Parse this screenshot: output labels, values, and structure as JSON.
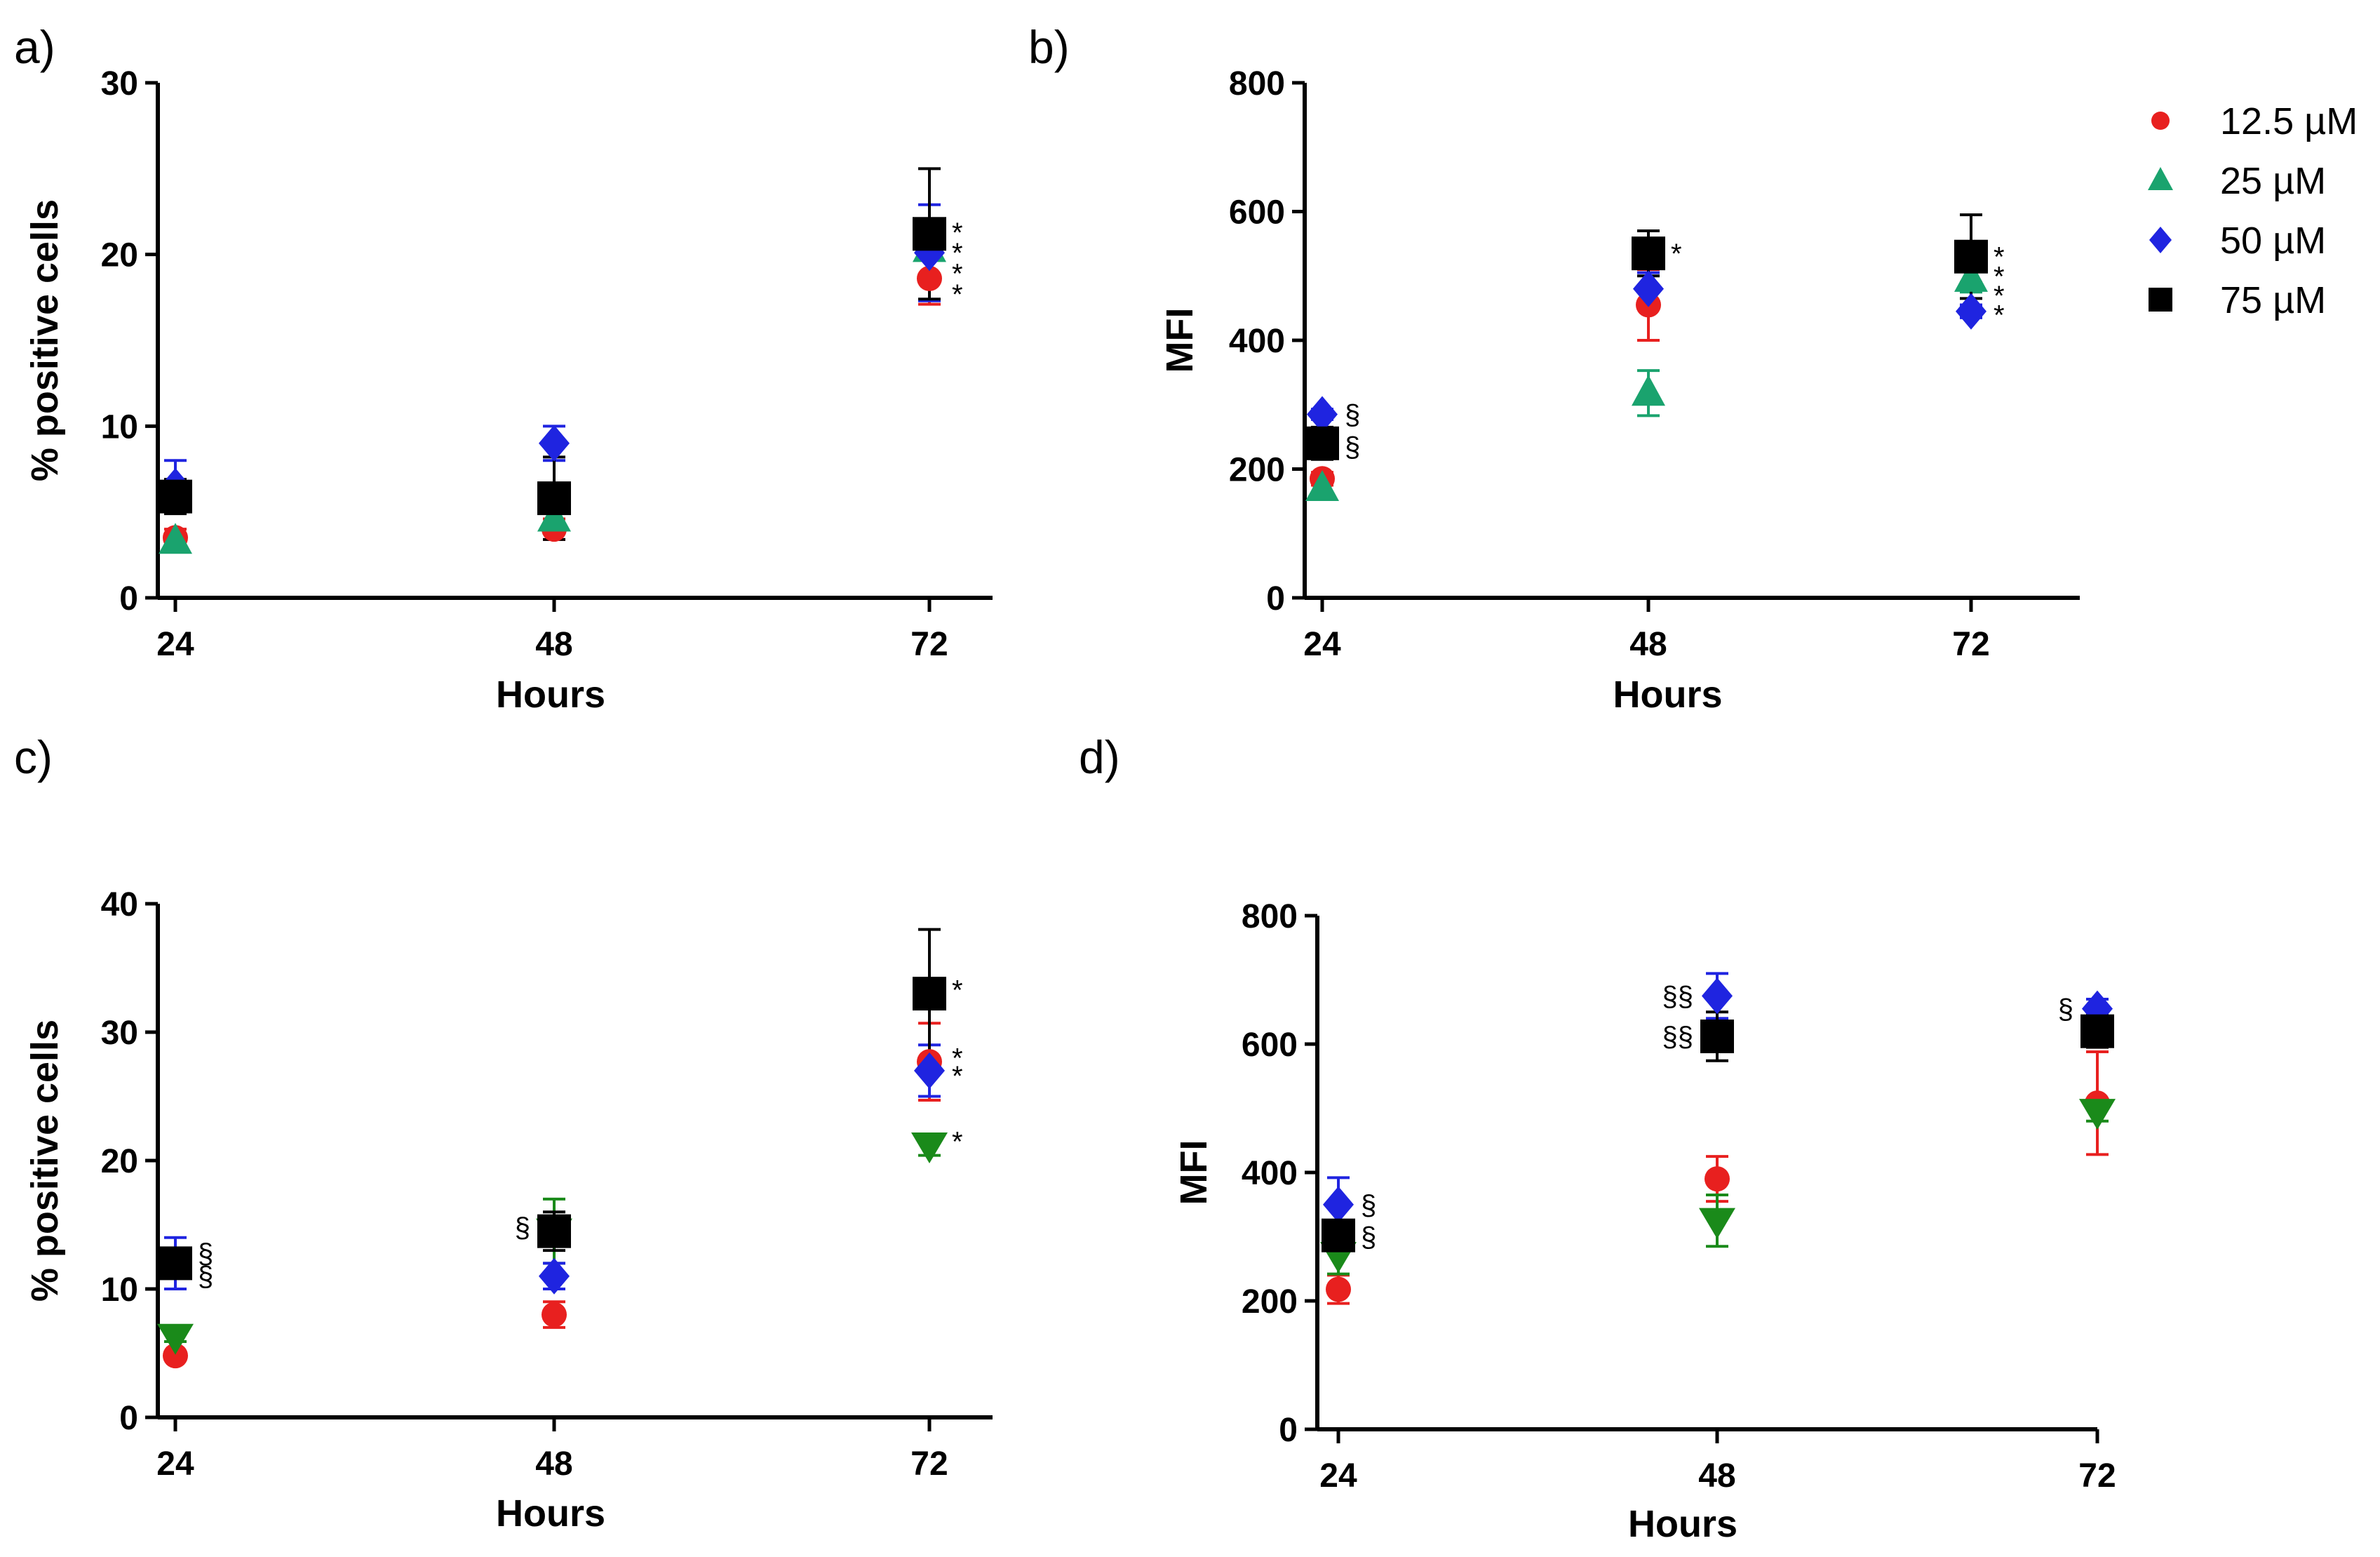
{
  "legend": {
    "items": [
      {
        "label": "12.5 µM",
        "color": "#e8201f",
        "marker": "circle"
      },
      {
        "label": "25 µM",
        "color": "#1aa36e",
        "marker": "triangle-up"
      },
      {
        "label": "50 µM",
        "color": "#1f24e0",
        "marker": "diamond"
      },
      {
        "label": "75 µM",
        "color": "#000000",
        "marker": "square"
      }
    ]
  },
  "chart_data": [
    {
      "panel": "a)",
      "type": "scatter",
      "xlabel": "Hours",
      "ylabel": "% positive cells",
      "x": [
        24,
        48,
        72
      ],
      "x_tick_labels": [
        "24",
        "48",
        "72"
      ],
      "ylim": [
        0,
        30
      ],
      "yticks": [
        0,
        10,
        20,
        30
      ],
      "series": [
        {
          "name": "12.5 µM",
          "color": "#e8201f",
          "marker": "circle",
          "values": [
            3.5,
            4.0,
            18.6
          ],
          "err": [
            0.5,
            0.6,
            1.5
          ]
        },
        {
          "name": "25 µM",
          "color": "#1aa36e",
          "marker": "triangle-up",
          "values": [
            3.3,
            4.6,
            20.3
          ],
          "err": [
            0.4,
            0.7,
            1.5
          ]
        },
        {
          "name": "50 µM",
          "color": "#1f24e0",
          "marker": "diamond",
          "values": [
            6.5,
            9.0,
            20.1
          ],
          "err": [
            1.5,
            1.0,
            2.8
          ]
        },
        {
          "name": "75 µM",
          "color": "#000000",
          "marker": "square",
          "values": [
            5.9,
            5.8,
            21.2
          ],
          "err": [
            1.0,
            2.4,
            3.8
          ]
        }
      ],
      "annotations": [
        {
          "text": "*",
          "x": 72,
          "y": 21.3
        },
        {
          "text": "*",
          "x": 72,
          "y": 20.1
        },
        {
          "text": "*",
          "x": 72,
          "y": 18.9
        },
        {
          "text": "*",
          "x": 72,
          "y": 17.7
        }
      ]
    },
    {
      "panel": "b)",
      "type": "scatter",
      "xlabel": "Hours",
      "ylabel": "MFI",
      "x": [
        24,
        48,
        72
      ],
      "x_tick_labels": [
        "24",
        "48",
        "72"
      ],
      "ylim": [
        0,
        800
      ],
      "yticks": [
        0,
        200,
        400,
        600,
        800
      ],
      "series": [
        {
          "name": "12.5 µM",
          "color": "#e8201f",
          "marker": "circle",
          "values": [
            185,
            455,
            520
          ],
          "err": [
            10,
            55,
            30
          ]
        },
        {
          "name": "25 µM",
          "color": "#1aa36e",
          "marker": "triangle-up",
          "values": [
            170,
            318,
            495
          ],
          "err": [
            10,
            35,
            20
          ]
        },
        {
          "name": "50 µM",
          "color": "#1f24e0",
          "marker": "diamond",
          "values": [
            285,
            480,
            445
          ],
          "err": [
            8,
            25,
            10
          ]
        },
        {
          "name": "75 µM",
          "color": "#000000",
          "marker": "square",
          "values": [
            240,
            535,
            530
          ],
          "err": [
            25,
            35,
            65
          ]
        }
      ],
      "annotations": [
        {
          "text": "§",
          "x": 24,
          "y": 285
        },
        {
          "text": "§",
          "x": 24,
          "y": 235
        },
        {
          "text": "*",
          "x": 48,
          "y": 535
        },
        {
          "text": "*",
          "x": 72,
          "y": 530
        },
        {
          "text": "*",
          "x": 72,
          "y": 500
        },
        {
          "text": "*",
          "x": 72,
          "y": 470
        },
        {
          "text": "*",
          "x": 72,
          "y": 440
        }
      ]
    },
    {
      "panel": "c)",
      "type": "scatter",
      "xlabel": "Hours",
      "ylabel": "% positive cells",
      "x": [
        24,
        48,
        72
      ],
      "x_tick_labels": [
        "24",
        "48",
        "72"
      ],
      "ylim": [
        0,
        40
      ],
      "yticks": [
        0,
        10,
        20,
        30,
        40
      ],
      "series": [
        {
          "name": "12.5 µM",
          "color": "#e8201f",
          "marker": "circle",
          "values": [
            4.8,
            8.0,
            27.7
          ],
          "err": [
            0.3,
            1.0,
            3.0
          ]
        },
        {
          "name": "25 µM",
          "color": "#1a8a1a",
          "marker": "triangle-down",
          "values": [
            6.3,
            14.5,
            21.2
          ],
          "err": [
            0.4,
            2.5,
            0.8
          ]
        },
        {
          "name": "50 µM",
          "color": "#1f24e0",
          "marker": "diamond",
          "values": [
            12.0,
            11.0,
            27.0
          ],
          "err": [
            2.0,
            1.0,
            2.0
          ]
        },
        {
          "name": "75 µM",
          "color": "#000000",
          "marker": "square",
          "values": [
            12.0,
            14.5,
            33.0
          ],
          "err": [
            1.0,
            1.5,
            5.0
          ]
        }
      ],
      "annotations": [
        {
          "text": "§",
          "x": 24,
          "y": 12.8
        },
        {
          "text": "§",
          "x": 24,
          "y": 11.0
        },
        {
          "text": "§",
          "x": 48,
          "y": 14.8
        },
        {
          "text": "*",
          "x": 72,
          "y": 33.3
        },
        {
          "text": "*",
          "x": 72,
          "y": 28.0
        },
        {
          "text": "*",
          "x": 72,
          "y": 26.6
        },
        {
          "text": "*",
          "x": 72,
          "y": 21.5
        }
      ]
    },
    {
      "panel": "d)",
      "type": "scatter",
      "xlabel": "Hours",
      "ylabel": "MFI",
      "x": [
        24,
        48,
        72
      ],
      "x_tick_labels": [
        "24",
        "48",
        "72"
      ],
      "ylim": [
        0,
        800
      ],
      "yticks": [
        0,
        200,
        400,
        600,
        800
      ],
      "series": [
        {
          "name": "12.5 µM",
          "color": "#e8201f",
          "marker": "circle",
          "values": [
            218,
            390,
            508
          ],
          "err": [
            22,
            35,
            80
          ]
        },
        {
          "name": "25 µM",
          "color": "#1a8a1a",
          "marker": "triangle-down",
          "values": [
            272,
            325,
            495
          ],
          "err": [
            30,
            40,
            15
          ]
        },
        {
          "name": "50 µM",
          "color": "#1f24e0",
          "marker": "diamond",
          "values": [
            350,
            675,
            655
          ],
          "err": [
            42,
            35,
            15
          ]
        },
        {
          "name": "75 µM",
          "color": "#000000",
          "marker": "square",
          "values": [
            302,
            612,
            620
          ],
          "err": [
            18,
            38,
            25
          ]
        }
      ],
      "annotations": [
        {
          "text": "§",
          "x": 24,
          "y": 350
        },
        {
          "text": "§",
          "x": 24,
          "y": 300
        },
        {
          "text": "§§",
          "x": 48,
          "y": 675
        },
        {
          "text": "§§",
          "x": 48,
          "y": 612
        },
        {
          "text": "§",
          "x": 72,
          "y": 655
        }
      ]
    }
  ]
}
